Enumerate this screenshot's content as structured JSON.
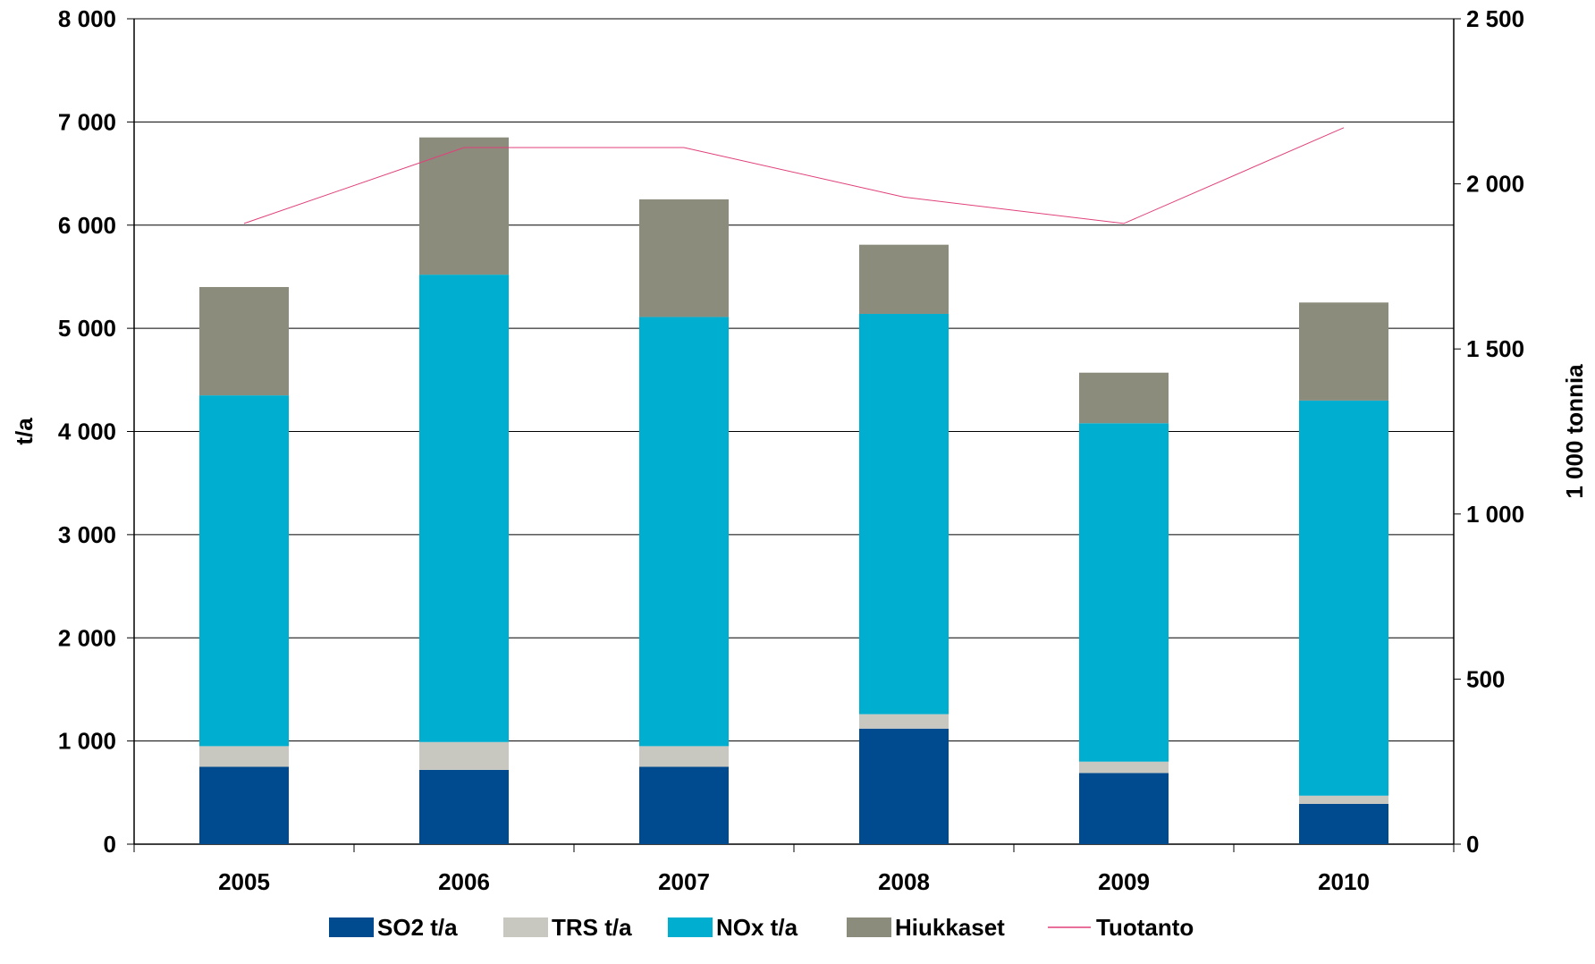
{
  "chart_data": {
    "type": "bar",
    "stacked": true,
    "categories": [
      "2005",
      "2006",
      "2007",
      "2008",
      "2009",
      "2010"
    ],
    "series": [
      {
        "name": "SO2 t/a",
        "color": "#004A8F",
        "axis": "left",
        "values": [
          750,
          720,
          750,
          1120,
          690,
          390
        ]
      },
      {
        "name": "TRS t/a",
        "color": "#C8C8C0",
        "axis": "left",
        "values": [
          200,
          270,
          200,
          140,
          110,
          80
        ]
      },
      {
        "name": "NOx t/a",
        "color": "#00AECF",
        "axis": "left",
        "values": [
          3400,
          4530,
          4160,
          3880,
          3280,
          3830
        ]
      },
      {
        "name": "Hiukkaset",
        "color": "#8C8C7C",
        "axis": "left",
        "values": [
          1050,
          1330,
          1140,
          670,
          490,
          950
        ]
      }
    ],
    "line_series": {
      "name": "Tuotanto",
      "color": "#E0407A",
      "axis": "right",
      "values": [
        1880,
        2110,
        2110,
        1960,
        1880,
        2170
      ]
    },
    "ylabel": "t/a",
    "ylabel_right": "1 000 tonnia",
    "ylim": [
      0,
      8000
    ],
    "ylim_right": [
      0,
      2500
    ],
    "yticks": [
      "0",
      "1 000",
      "2 000",
      "3 000",
      "4 000",
      "5 000",
      "6 000",
      "7 000",
      "8 000"
    ],
    "yticks_right": [
      "0",
      "500",
      "1 000",
      "1 500",
      "2 000",
      "2 500"
    ],
    "grid": true,
    "legend": {
      "position": "bottom",
      "items": [
        "SO2 t/a",
        "TRS t/a",
        "NOx t/a",
        "Hiukkaset",
        "Tuotanto"
      ]
    }
  }
}
